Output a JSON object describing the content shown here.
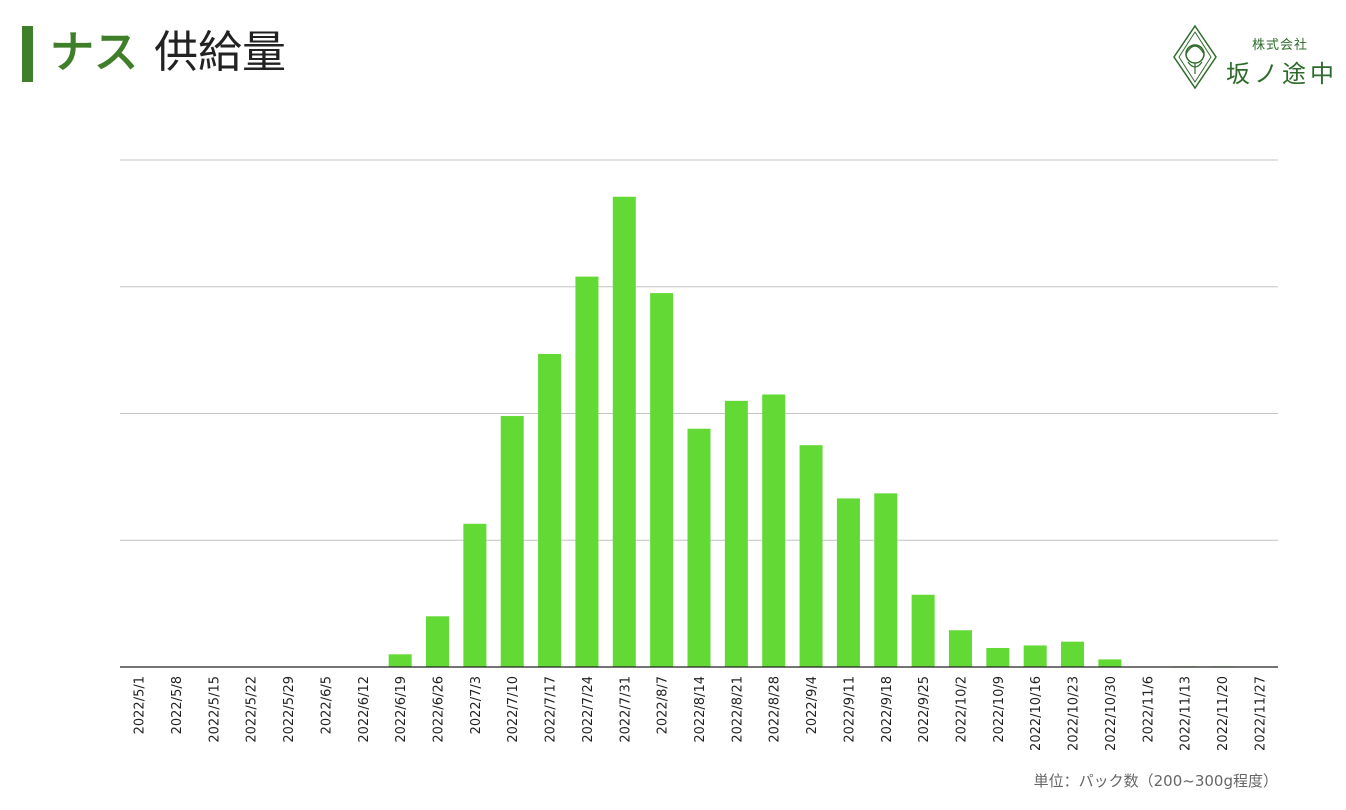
{
  "header": {
    "title_vegetable": "ナス",
    "title_rest": "供給量"
  },
  "logo": {
    "company_type": "株式会社",
    "company_name": "坂ノ途中"
  },
  "unit_note": "単位：パック数（200~300g程度）",
  "colors": {
    "bar": "#62d935",
    "accent": "#3f7f2a",
    "gridline": "#c4c4c4",
    "axis": "#222222",
    "logo": "#2e6b2a"
  },
  "chart_data": {
    "type": "bar",
    "categories": [
      "2022/5/1",
      "2022/5/8",
      "2022/5/15",
      "2022/5/22",
      "2022/5/29",
      "2022/6/5",
      "2022/6/12",
      "2022/6/19",
      "2022/6/26",
      "2022/7/3",
      "2022/7/10",
      "2022/7/17",
      "2022/7/24",
      "2022/7/31",
      "2022/8/7",
      "2022/8/14",
      "2022/8/21",
      "2022/8/28",
      "2022/9/4",
      "2022/9/11",
      "2022/9/18",
      "2022/9/25",
      "2022/10/2",
      "2022/10/9",
      "2022/10/16",
      "2022/10/23",
      "2022/10/30",
      "2022/11/6",
      "2022/11/13",
      "2022/11/20",
      "2022/11/27"
    ],
    "values": [
      0,
      0,
      0,
      0,
      0,
      0,
      0,
      0.1,
      0.4,
      1.13,
      1.98,
      2.47,
      3.08,
      3.71,
      2.95,
      1.88,
      2.1,
      2.15,
      1.75,
      1.33,
      1.37,
      0.57,
      0.29,
      0.15,
      0.17,
      0.2,
      0.06,
      0,
      0.005,
      0.005,
      0
    ],
    "ylim": [
      0,
      4
    ],
    "y_ticks_shown": false,
    "grid": true,
    "legend": "none",
    "xlabel": "",
    "ylabel": ""
  }
}
